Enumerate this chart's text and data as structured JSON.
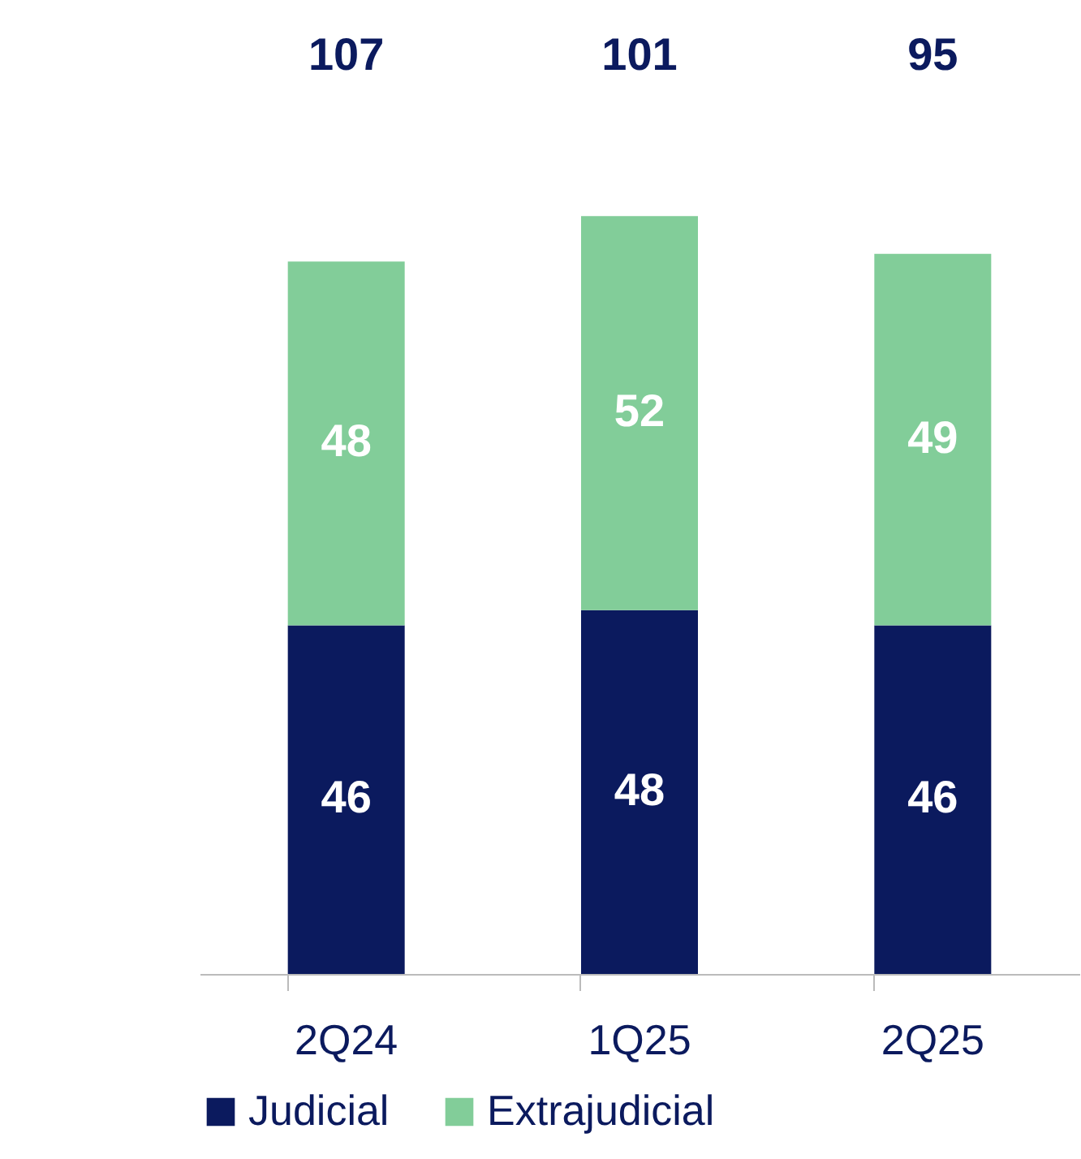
{
  "chart_data": {
    "type": "bar",
    "stacked": true,
    "categories": [
      "2Q24",
      "1Q25",
      "2Q25"
    ],
    "series": [
      {
        "name": "Judicial",
        "color": "#0b1a5e",
        "values": [
          46,
          48,
          46
        ]
      },
      {
        "name": "Extrajudicial",
        "color": "#82cd99",
        "values": [
          48,
          52,
          49
        ]
      }
    ],
    "data_labels": true,
    "annotations": [
      "107",
      "101",
      "95"
    ],
    "legend": "bottom",
    "grid": false,
    "tick_labels": "x"
  }
}
